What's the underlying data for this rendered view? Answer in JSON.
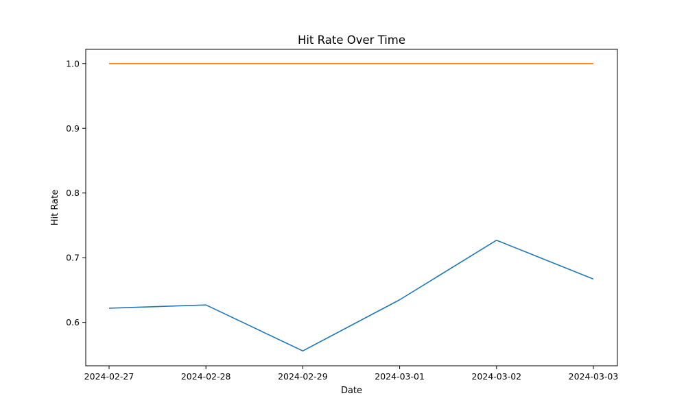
{
  "chart_data": {
    "type": "line",
    "title": "Hit Rate Over Time",
    "xlabel": "Date",
    "ylabel": "Hit Rate",
    "categories": [
      "2024-02-27",
      "2024-02-28",
      "2024-02-29",
      "2024-03-01",
      "2024-03-02",
      "2024-03-03"
    ],
    "yticks": [
      "0.6",
      "0.7",
      "0.8",
      "0.9",
      "1.0"
    ],
    "ylim": [
      0.533,
      1.022
    ],
    "grid": false,
    "series": [
      {
        "color": "#1f77b4",
        "values": [
          0.622,
          0.627,
          0.556,
          0.635,
          0.727,
          0.667
        ]
      },
      {
        "color": "#ff7f0e",
        "values": [
          1.0,
          1.0,
          1.0,
          1.0,
          1.0,
          1.0
        ]
      }
    ]
  }
}
